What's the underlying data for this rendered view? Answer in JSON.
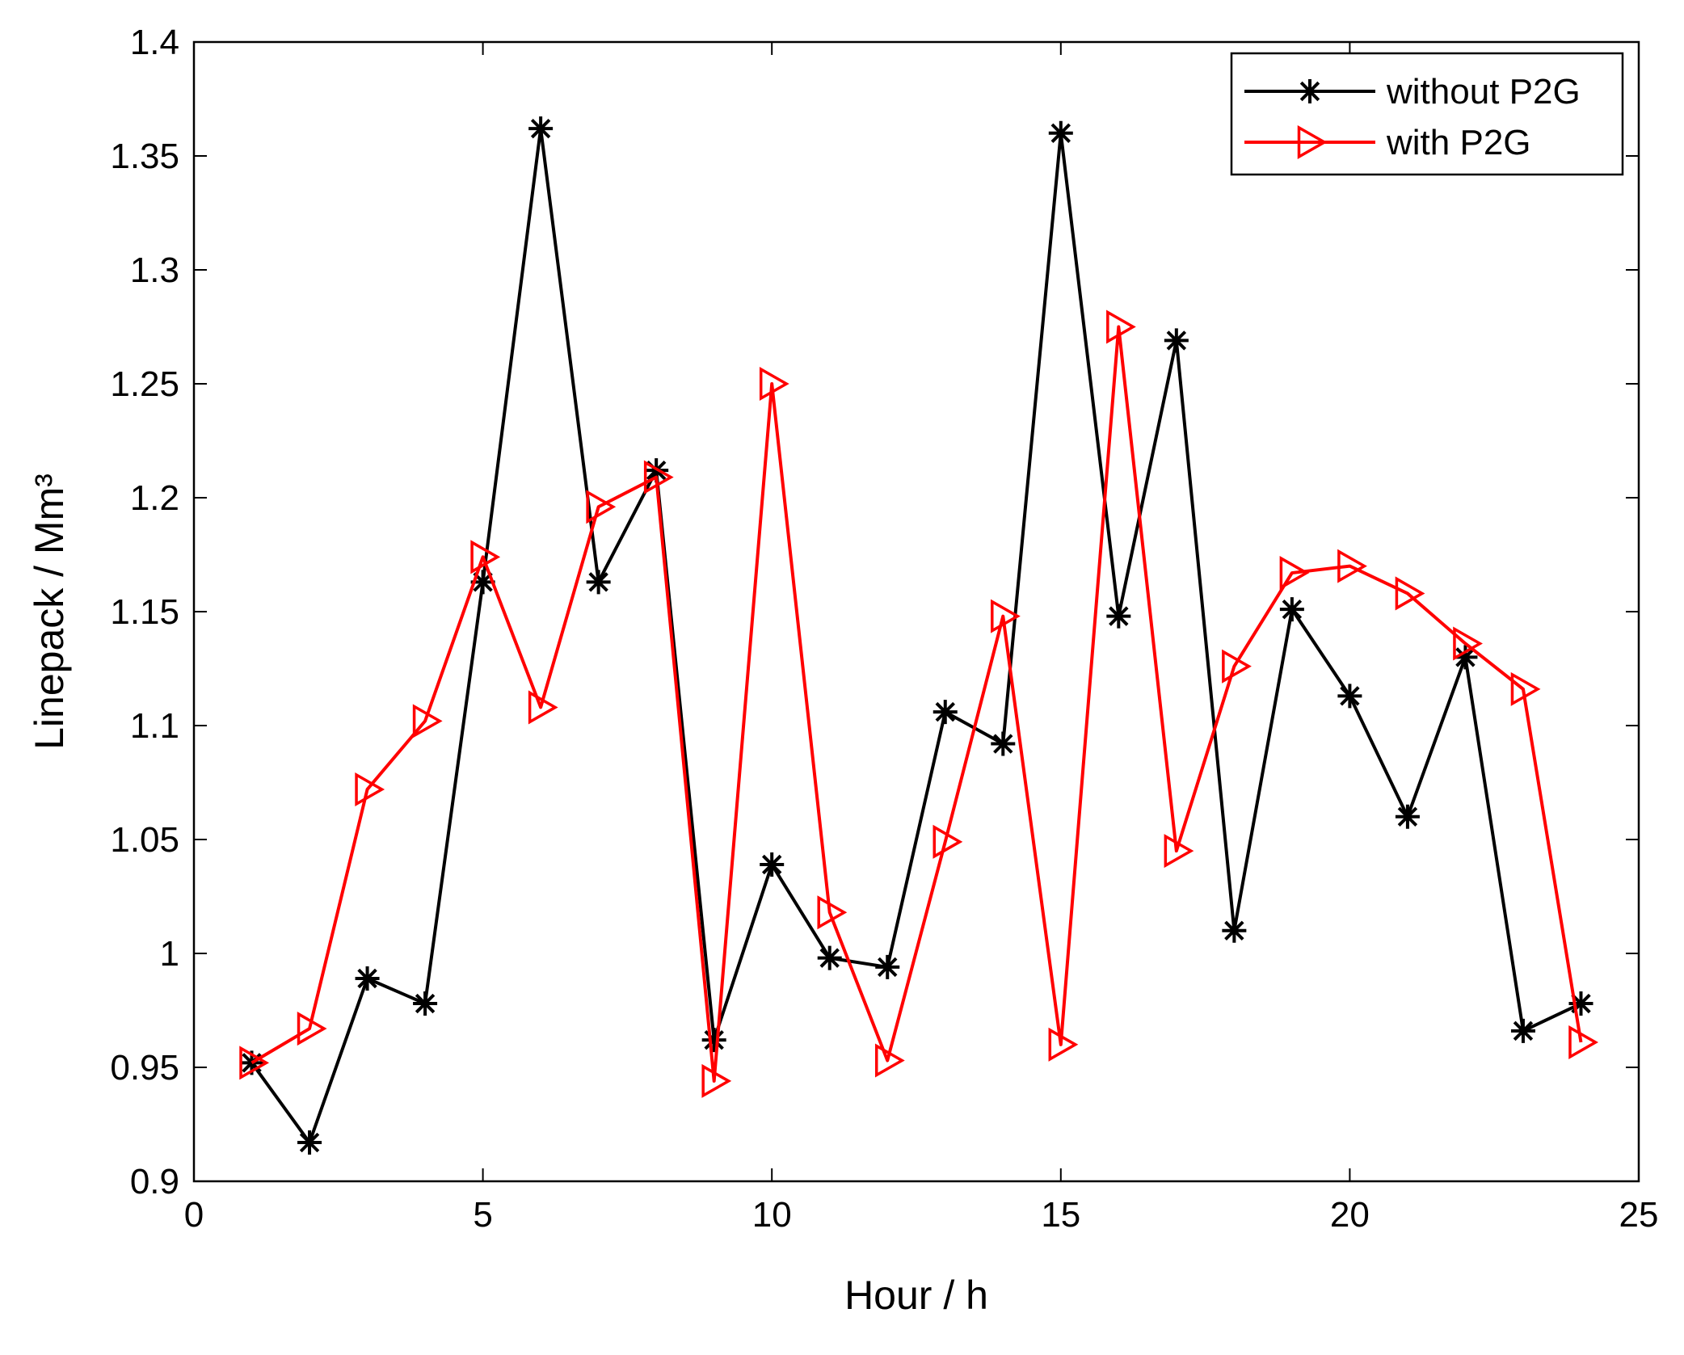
{
  "chart_data": {
    "type": "line",
    "title": "",
    "xlabel": "Hour / h",
    "ylabel": "Linepack / Mm³",
    "xlim": [
      0,
      25
    ],
    "ylim": [
      0.9,
      1.4
    ],
    "xticks": [
      0,
      5,
      10,
      15,
      20,
      25
    ],
    "yticks": [
      0.9,
      0.95,
      1,
      1.05,
      1.1,
      1.15,
      1.2,
      1.25,
      1.3,
      1.35,
      1.4
    ],
    "xtick_labels": [
      "0",
      "5",
      "10",
      "15",
      "20",
      "25"
    ],
    "ytick_labels": [
      "0.9",
      "0.95",
      "1",
      "1.05",
      "1.1",
      "1.15",
      "1.2",
      "1.25",
      "1.3",
      "1.35",
      "1.4"
    ],
    "grid": false,
    "legend_position": "top-right",
    "x": [
      1,
      2,
      3,
      4,
      5,
      6,
      7,
      8,
      9,
      10,
      11,
      12,
      13,
      14,
      15,
      16,
      17,
      18,
      19,
      20,
      21,
      22,
      23,
      24
    ],
    "series": [
      {
        "name": "without P2G",
        "color": "#000000",
        "marker": "asterisk",
        "values": [
          0.952,
          0.917,
          0.989,
          0.978,
          1.163,
          1.362,
          1.163,
          1.212,
          0.962,
          1.039,
          0.998,
          0.994,
          1.106,
          1.092,
          1.36,
          1.148,
          1.269,
          1.01,
          1.151,
          1.113,
          1.06,
          1.13,
          0.966,
          0.978
        ]
      },
      {
        "name": "with P2G",
        "color": "#ff0000",
        "marker": "triangle-right",
        "values": [
          0.952,
          0.967,
          1.072,
          1.102,
          1.174,
          1.108,
          1.196,
          1.209,
          0.944,
          1.25,
          1.018,
          0.953,
          1.049,
          1.148,
          0.96,
          1.275,
          1.045,
          1.126,
          1.167,
          1.17,
          1.158,
          1.136,
          1.116,
          0.961
        ]
      }
    ]
  }
}
